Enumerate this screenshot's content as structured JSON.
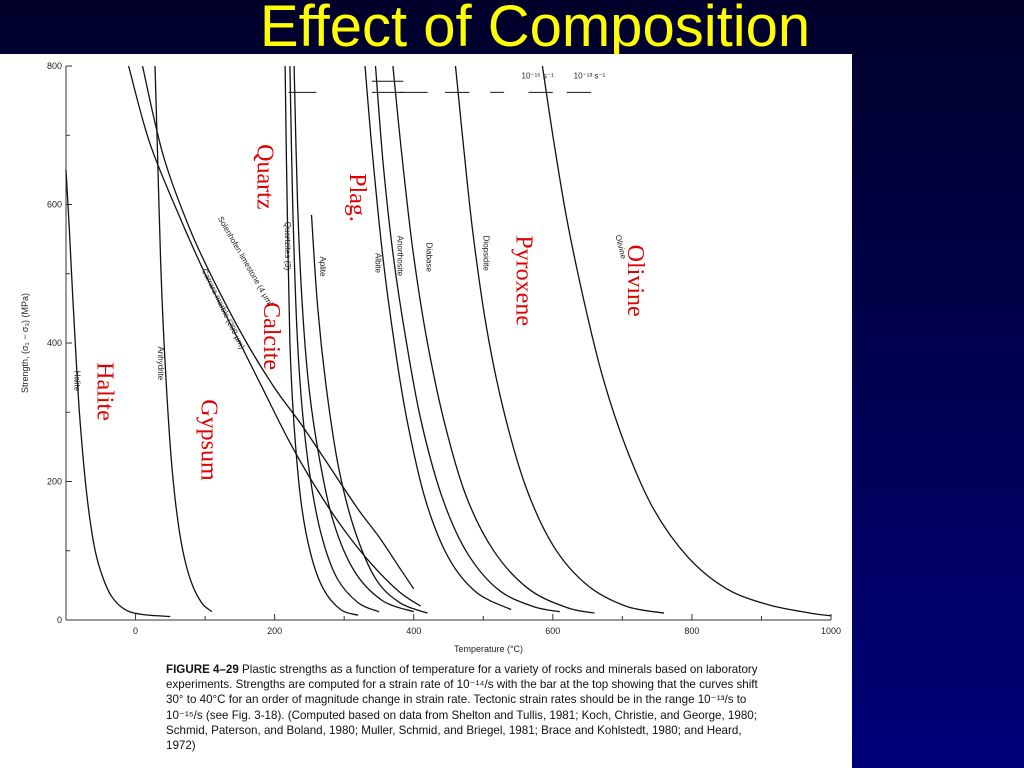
{
  "slide": {
    "title": "Effect of Composition"
  },
  "caption": {
    "lead": "FIGURE 4–29",
    "text": "Plastic strengths as a function of temperature for a variety of rocks and minerals based on laboratory experiments. Strengths are computed for a strain rate of 10⁻¹⁴/s with the bar at the top showing that the curves shift 30° to 40°C for an order of magnitude change in strain rate. Tectonic strain rates should be in the range 10⁻¹³/s to 10⁻¹⁵/s (see Fig. 3-18). (Computed based on data from Shelton and Tullis, 1981; Koch, Christie, and George, 1980; Schmid, Paterson, and Boland, 1980; Muller, Schmid, and Briegel, 1981; Brace and Kohlstedt, 1980; and Heard, 1972)"
  },
  "chart_data": {
    "type": "line",
    "xlabel": "Temperature (°C)",
    "ylabel": "Strength, (σ₁ − σ₃) (MPa)",
    "xlim": [
      -100,
      1000
    ],
    "ylim": [
      0,
      800
    ],
    "x_ticks": [
      0,
      200,
      400,
      600,
      800,
      1000
    ],
    "x_tick_labels": [
      "0",
      "200",
      "400",
      "600",
      "800",
      "1000"
    ],
    "y_ticks": [
      0,
      200,
      400,
      600,
      800
    ],
    "y_tick_labels": [
      "0",
      "200",
      "400",
      "600",
      "800"
    ],
    "strain_rate_labels": [
      "10⁻¹⁵ s⁻¹",
      "10⁻¹³ s⁻¹"
    ],
    "series": [
      {
        "name": "Halite",
        "points": [
          [
            -100,
            650
          ],
          [
            -95,
            560
          ],
          [
            -90,
            460
          ],
          [
            -85,
            370
          ],
          [
            -80,
            290
          ],
          [
            -70,
            180
          ],
          [
            -60,
            110
          ],
          [
            -50,
            70
          ],
          [
            -35,
            35
          ],
          [
            -15,
            15
          ],
          [
            10,
            8
          ],
          [
            50,
            5
          ]
        ]
      },
      {
        "name": "Anhydrite",
        "points": [
          [
            28,
            800
          ],
          [
            32,
            660
          ],
          [
            36,
            520
          ],
          [
            42,
            380
          ],
          [
            50,
            250
          ],
          [
            58,
            165
          ],
          [
            68,
            100
          ],
          [
            80,
            55
          ],
          [
            95,
            25
          ],
          [
            110,
            12
          ]
        ]
      },
      {
        "name": "Carrara marble (200 μm)",
        "points": [
          [
            10,
            800
          ],
          [
            40,
            670
          ],
          [
            80,
            560
          ],
          [
            120,
            475
          ],
          [
            160,
            400
          ],
          [
            200,
            335
          ],
          [
            240,
            280
          ],
          [
            280,
            220
          ],
          [
            320,
            160
          ],
          [
            350,
            120
          ],
          [
            380,
            75
          ],
          [
            400,
            45
          ]
        ]
      },
      {
        "name": "Solenhofen limestone (4 μm)",
        "points": [
          [
            -10,
            800
          ],
          [
            20,
            690
          ],
          [
            60,
            590
          ],
          [
            100,
            500
          ],
          [
            140,
            420
          ],
          [
            180,
            340
          ],
          [
            220,
            260
          ],
          [
            260,
            190
          ],
          [
            300,
            130
          ],
          [
            340,
            80
          ],
          [
            380,
            40
          ],
          [
            410,
            20
          ]
        ]
      },
      {
        "name": "Quartzites (3)",
        "points": [
          [
            215,
            800
          ],
          [
            218,
            600
          ],
          [
            222,
            400
          ],
          [
            228,
            280
          ],
          [
            238,
            170
          ],
          [
            252,
            95
          ],
          [
            270,
            45
          ],
          [
            295,
            15
          ],
          [
            320,
            7
          ]
        ]
      },
      {
        "name": "",
        "points": [
          [
            222,
            800
          ],
          [
            226,
            600
          ],
          [
            232,
            420
          ],
          [
            240,
            300
          ],
          [
            252,
            200
          ],
          [
            268,
            120
          ],
          [
            290,
            60
          ],
          [
            320,
            25
          ],
          [
            350,
            12
          ]
        ]
      },
      {
        "name": "",
        "points": [
          [
            228,
            800
          ],
          [
            233,
            600
          ],
          [
            240,
            450
          ],
          [
            250,
            330
          ],
          [
            265,
            230
          ],
          [
            285,
            140
          ],
          [
            315,
            70
          ],
          [
            355,
            28
          ],
          [
            400,
            12
          ]
        ]
      },
      {
        "name": "Aplite",
        "points": [
          [
            253,
            585
          ],
          [
            262,
            450
          ],
          [
            275,
            330
          ],
          [
            292,
            220
          ],
          [
            315,
            130
          ],
          [
            345,
            60
          ],
          [
            380,
            25
          ],
          [
            420,
            10
          ]
        ]
      },
      {
        "name": "Albite",
        "points": [
          [
            330,
            800
          ],
          [
            340,
            680
          ],
          [
            355,
            530
          ],
          [
            372,
            400
          ],
          [
            392,
            280
          ],
          [
            418,
            170
          ],
          [
            450,
            90
          ],
          [
            490,
            40
          ],
          [
            540,
            15
          ]
        ]
      },
      {
        "name": "Anorthosite",
        "points": [
          [
            345,
            800
          ],
          [
            356,
            660
          ],
          [
            370,
            530
          ],
          [
            388,
            410
          ],
          [
            410,
            290
          ],
          [
            440,
            180
          ],
          [
            475,
            100
          ],
          [
            520,
            45
          ],
          [
            570,
            20
          ],
          [
            610,
            12
          ]
        ]
      },
      {
        "name": "Diabase",
        "points": [
          [
            370,
            800
          ],
          [
            382,
            680
          ],
          [
            398,
            540
          ],
          [
            418,
            410
          ],
          [
            443,
            290
          ],
          [
            475,
            180
          ],
          [
            515,
            100
          ],
          [
            565,
            45
          ],
          [
            620,
            18
          ],
          [
            660,
            10
          ]
        ]
      },
      {
        "name": "Diopsidite",
        "points": [
          [
            460,
            800
          ],
          [
            470,
            700
          ],
          [
            485,
            560
          ],
          [
            505,
            420
          ],
          [
            530,
            300
          ],
          [
            562,
            190
          ],
          [
            602,
            105
          ],
          [
            650,
            50
          ],
          [
            705,
            20
          ],
          [
            760,
            10
          ]
        ]
      },
      {
        "name": "Olivine",
        "points": [
          [
            585,
            800
          ],
          [
            600,
            700
          ],
          [
            620,
            580
          ],
          [
            645,
            460
          ],
          [
            672,
            350
          ],
          [
            705,
            250
          ],
          [
            745,
            160
          ],
          [
            795,
            90
          ],
          [
            850,
            45
          ],
          [
            910,
            22
          ],
          [
            970,
            10
          ],
          [
            1000,
            6
          ]
        ]
      }
    ],
    "annotations": [
      "Halite",
      "Gypsum",
      "Calcite",
      "Quartz",
      "Plag.",
      "Pyroxene",
      "Olivine"
    ]
  }
}
